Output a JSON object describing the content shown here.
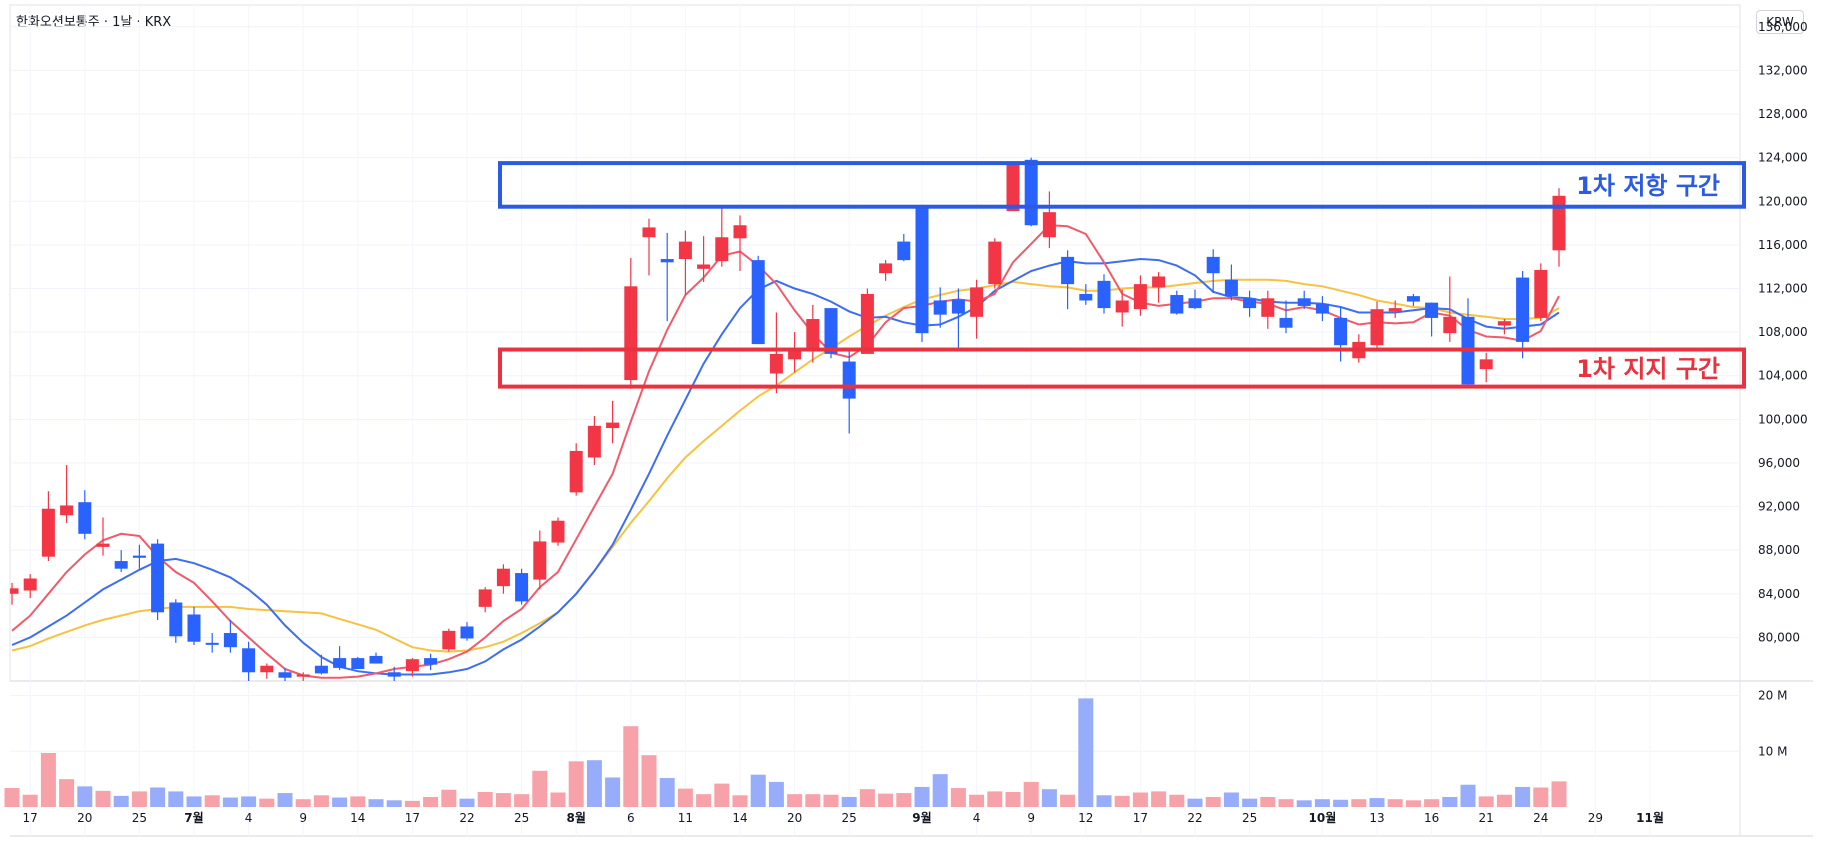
{
  "header": {
    "title": "한화오션보통주 · 1날 · KRX",
    "currency": "KRW"
  },
  "colors": {
    "up": "#f23645",
    "down": "#2962ff",
    "vol_up": "#f7a1a9",
    "vol_down": "#97adfb",
    "ma5": "#ef5b6a",
    "ma10": "#3d6ef0",
    "ma20": "#f5c242"
  },
  "chart_data": {
    "type": "candlestick",
    "ylim": [
      76000,
      138000
    ],
    "y_ticks": [
      80000,
      84000,
      88000,
      92000,
      96000,
      100000,
      104000,
      108000,
      112000,
      116000,
      120000,
      124000,
      128000,
      132000,
      136000
    ],
    "y_tick_labels": [
      "80,000",
      "84,000",
      "88,000",
      "92,000",
      "96,000",
      "100,000",
      "104,000",
      "108,000",
      "112,000",
      "116,000",
      "120,000",
      "124,000",
      "128,000",
      "132,000",
      "136,000"
    ],
    "volume_ticks": [
      {
        "value": 10,
        "label": "10 M"
      },
      {
        "value": 20,
        "label": "20 M"
      }
    ],
    "volume_max": 21,
    "x_tick_labels": [
      {
        "i": 1,
        "label": "17"
      },
      {
        "i": 4,
        "label": "20"
      },
      {
        "i": 7,
        "label": "25"
      },
      {
        "i": 10,
        "label": "7월",
        "bold": true
      },
      {
        "i": 13,
        "label": "4"
      },
      {
        "i": 16,
        "label": "9"
      },
      {
        "i": 19,
        "label": "14"
      },
      {
        "i": 22,
        "label": "17"
      },
      {
        "i": 25,
        "label": "22"
      },
      {
        "i": 28,
        "label": "25"
      },
      {
        "i": 31,
        "label": "8월",
        "bold": true
      },
      {
        "i": 34,
        "label": "6"
      },
      {
        "i": 37,
        "label": "11"
      },
      {
        "i": 40,
        "label": "14"
      },
      {
        "i": 43,
        "label": "20"
      },
      {
        "i": 46,
        "label": "25"
      },
      {
        "i": 50,
        "label": "9월",
        "bold": true
      },
      {
        "i": 53,
        "label": "4"
      },
      {
        "i": 56,
        "label": "9"
      },
      {
        "i": 59,
        "label": "12"
      },
      {
        "i": 62,
        "label": "17"
      },
      {
        "i": 65,
        "label": "22"
      },
      {
        "i": 68,
        "label": "25"
      },
      {
        "i": 72,
        "label": "10월",
        "bold": true
      },
      {
        "i": 75,
        "label": "13"
      },
      {
        "i": 78,
        "label": "16"
      },
      {
        "i": 81,
        "label": "21"
      },
      {
        "i": 84,
        "label": "24"
      },
      {
        "i": 87,
        "label": "29"
      },
      {
        "i": 90,
        "label": "11월",
        "bold": true
      }
    ],
    "ohlc": [
      [
        84000,
        85000,
        83000,
        84500
      ],
      [
        84300,
        85800,
        83600,
        85400
      ],
      [
        87400,
        93400,
        87000,
        91800
      ],
      [
        91200,
        95800,
        90500,
        92100
      ],
      [
        92400,
        93500,
        89000,
        89500
      ],
      [
        88300,
        91000,
        87500,
        88600
      ],
      [
        87000,
        88000,
        86000,
        86300
      ],
      [
        87500,
        88500,
        86300,
        87300
      ],
      [
        88600,
        89000,
        81600,
        82300
      ],
      [
        83200,
        83500,
        79500,
        80100
      ],
      [
        82100,
        82800,
        79300,
        79600
      ],
      [
        79500,
        80400,
        78600,
        79400
      ],
      [
        80400,
        81600,
        78600,
        79100
      ],
      [
        79000,
        79600,
        76000,
        76800
      ],
      [
        76800,
        77600,
        76200,
        77400
      ],
      [
        76800,
        77200,
        76000,
        76300
      ],
      [
        76400,
        76800,
        75600,
        76600
      ],
      [
        77400,
        78400,
        76600,
        76700
      ],
      [
        78100,
        79200,
        77000,
        77200
      ],
      [
        78100,
        78200,
        77100,
        77100
      ],
      [
        78300,
        78600,
        77600,
        77600
      ],
      [
        76800,
        77300,
        76000,
        76400
      ],
      [
        76900,
        78100,
        76400,
        78000
      ],
      [
        78100,
        78500,
        77000,
        77500
      ],
      [
        78900,
        80800,
        78700,
        80600
      ],
      [
        81000,
        81400,
        79700,
        79900
      ],
      [
        82800,
        84600,
        82300,
        84400
      ],
      [
        84700,
        86700,
        84000,
        86300
      ],
      [
        85900,
        86300,
        83000,
        83300
      ],
      [
        85300,
        89800,
        84400,
        88800
      ],
      [
        88700,
        91000,
        88400,
        90700
      ],
      [
        93300,
        97800,
        93000,
        97100
      ],
      [
        96500,
        100300,
        95800,
        99400
      ],
      [
        99200,
        101700,
        97800,
        99700
      ],
      [
        103600,
        114800,
        102800,
        112200
      ],
      [
        116700,
        118400,
        113200,
        117600
      ],
      [
        114700,
        117100,
        109000,
        114400
      ],
      [
        114700,
        117300,
        111400,
        116300
      ],
      [
        113800,
        116800,
        112600,
        114200
      ],
      [
        114500,
        119400,
        114000,
        116700
      ],
      [
        116600,
        118700,
        113600,
        117800
      ],
      [
        114600,
        115000,
        106900,
        106900
      ],
      [
        104200,
        109800,
        102400,
        106000
      ],
      [
        105500,
        108000,
        104300,
        106300
      ],
      [
        106500,
        110500,
        105200,
        109200
      ],
      [
        110200,
        110200,
        105600,
        106000
      ],
      [
        105300,
        106300,
        98700,
        101900
      ],
      [
        106000,
        112000,
        106000,
        111500
      ],
      [
        113400,
        114600,
        112700,
        114300
      ],
      [
        116300,
        117000,
        114500,
        114600
      ],
      [
        119400,
        119600,
        107100,
        107900
      ],
      [
        110900,
        112100,
        108400,
        109600
      ],
      [
        111000,
        112000,
        106400,
        109700
      ],
      [
        109400,
        112800,
        107400,
        112100
      ],
      [
        112400,
        116600,
        112000,
        116300
      ],
      [
        119100,
        123600,
        119100,
        123500
      ],
      [
        123800,
        124000,
        117700,
        117800
      ],
      [
        116700,
        120900,
        115700,
        119000
      ],
      [
        114900,
        115500,
        110100,
        112400
      ],
      [
        111500,
        112400,
        110500,
        110900
      ],
      [
        112700,
        113300,
        109700,
        110200
      ],
      [
        109800,
        111900,
        108500,
        110900
      ],
      [
        110100,
        113200,
        109500,
        112400
      ],
      [
        112100,
        113500,
        110700,
        113100
      ],
      [
        111400,
        111800,
        109600,
        109700
      ],
      [
        111100,
        111900,
        110100,
        110200
      ],
      [
        114900,
        115600,
        111600,
        113400
      ],
      [
        112800,
        114200,
        110900,
        111300
      ],
      [
        111100,
        111800,
        109400,
        110200
      ],
      [
        109400,
        111800,
        108300,
        111100
      ],
      [
        109300,
        110900,
        107900,
        108400
      ],
      [
        111100,
        111800,
        110100,
        110400
      ],
      [
        110600,
        111300,
        109000,
        109700
      ],
      [
        109300,
        110300,
        105300,
        106800
      ],
      [
        105600,
        107800,
        105200,
        107100
      ],
      [
        106800,
        110800,
        106400,
        110100
      ],
      [
        109900,
        110900,
        109300,
        110200
      ],
      [
        111300,
        111500,
        110400,
        110800
      ],
      [
        110700,
        110700,
        107600,
        109300
      ],
      [
        107900,
        113100,
        107100,
        109400
      ],
      [
        109400,
        111100,
        103100,
        103200
      ],
      [
        104600,
        106100,
        103400,
        105500
      ],
      [
        108600,
        109200,
        107800,
        109000
      ],
      [
        113000,
        113600,
        105600,
        107100
      ],
      [
        109300,
        114300,
        109000,
        113700
      ],
      [
        115500,
        121200,
        114000,
        120500
      ]
    ],
    "volumes": [
      [
        3.4,
        1
      ],
      [
        2.2,
        1
      ],
      [
        9.7,
        1
      ],
      [
        5.0,
        1
      ],
      [
        3.7,
        0
      ],
      [
        2.9,
        1
      ],
      [
        2.0,
        0
      ],
      [
        2.8,
        1
      ],
      [
        3.5,
        0
      ],
      [
        2.8,
        0
      ],
      [
        1.9,
        0
      ],
      [
        2.1,
        1
      ],
      [
        1.7,
        0
      ],
      [
        1.9,
        0
      ],
      [
        1.5,
        1
      ],
      [
        2.5,
        0
      ],
      [
        1.4,
        1
      ],
      [
        2.1,
        1
      ],
      [
        1.7,
        0
      ],
      [
        1.9,
        1
      ],
      [
        1.4,
        0
      ],
      [
        1.2,
        0
      ],
      [
        1.1,
        1
      ],
      [
        1.8,
        1
      ],
      [
        3.1,
        1
      ],
      [
        1.5,
        0
      ],
      [
        2.7,
        1
      ],
      [
        2.5,
        1
      ],
      [
        2.3,
        1
      ],
      [
        6.5,
        1
      ],
      [
        2.6,
        1
      ],
      [
        8.2,
        1
      ],
      [
        8.4,
        0
      ],
      [
        5.3,
        0
      ],
      [
        14.5,
        1
      ],
      [
        9.3,
        1
      ],
      [
        5.2,
        0
      ],
      [
        3.3,
        1
      ],
      [
        2.3,
        1
      ],
      [
        4.2,
        1
      ],
      [
        2.1,
        1
      ],
      [
        5.8,
        0
      ],
      [
        4.5,
        0
      ],
      [
        2.3,
        1
      ],
      [
        2.3,
        1
      ],
      [
        2.2,
        1
      ],
      [
        1.8,
        0
      ],
      [
        3.2,
        1
      ],
      [
        2.4,
        1
      ],
      [
        2.5,
        1
      ],
      [
        3.6,
        0
      ],
      [
        5.9,
        0
      ],
      [
        3.4,
        1
      ],
      [
        2.2,
        1
      ],
      [
        2.8,
        1
      ],
      [
        2.7,
        1
      ],
      [
        4.5,
        1
      ],
      [
        3.2,
        0
      ],
      [
        2.2,
        1
      ],
      [
        19.5,
        0
      ],
      [
        2.1,
        0
      ],
      [
        2.0,
        1
      ],
      [
        2.6,
        1
      ],
      [
        2.8,
        1
      ],
      [
        2.2,
        1
      ],
      [
        1.5,
        0
      ],
      [
        1.8,
        1
      ],
      [
        2.6,
        0
      ],
      [
        1.5,
        0
      ],
      [
        1.8,
        1
      ],
      [
        1.4,
        1
      ],
      [
        1.2,
        0
      ],
      [
        1.4,
        0
      ],
      [
        1.3,
        0
      ],
      [
        1.4,
        1
      ],
      [
        1.6,
        0
      ],
      [
        1.4,
        1
      ],
      [
        1.2,
        1
      ],
      [
        1.4,
        1
      ],
      [
        1.8,
        0
      ],
      [
        4.0,
        0
      ],
      [
        1.9,
        1
      ],
      [
        2.2,
        1
      ],
      [
        3.6,
        0
      ],
      [
        3.5,
        1
      ],
      [
        4.6,
        1
      ]
    ],
    "ma5": [
      80600,
      82000,
      84000,
      86000,
      87600,
      88900,
      89500,
      89300,
      87400,
      86000,
      85000,
      83300,
      81500,
      80000,
      78500,
      77100,
      76500,
      76300,
      76300,
      76400,
      76700,
      77100,
      77300,
      77500,
      78000,
      78700,
      80000,
      81500,
      82600,
      84600,
      86000,
      89000,
      92000,
      95000,
      99800,
      104400,
      108200,
      111400,
      113000,
      115000,
      115400,
      114100,
      112400,
      110000,
      107900,
      106100,
      105700,
      106800,
      108900,
      110200,
      110400,
      110800,
      111000,
      110800,
      111500,
      114400,
      116100,
      117800,
      117700,
      117000,
      114400,
      111500,
      110700,
      110400,
      110600,
      110800,
      111100,
      111100,
      110800,
      110600,
      110000,
      110300,
      110000,
      109300,
      108700,
      108900,
      108800,
      108900,
      109800,
      109500,
      108200,
      107600,
      107500,
      107200,
      108100,
      111300
    ],
    "ma10": [
      79300,
      80000,
      81000,
      82000,
      83200,
      84400,
      85300,
      86200,
      87000,
      87200,
      86800,
      86200,
      85500,
      84400,
      83000,
      81100,
      79500,
      78200,
      77300,
      76900,
      76700,
      76600,
      76600,
      76600,
      76800,
      77100,
      77800,
      78900,
      79800,
      81000,
      82300,
      84000,
      86100,
      88500,
      91700,
      95000,
      98500,
      101800,
      105100,
      107800,
      110200,
      111900,
      112700,
      112000,
      111500,
      110800,
      109900,
      109300,
      109400,
      108900,
      108600,
      108700,
      109400,
      110300,
      111800,
      112700,
      113600,
      114100,
      114500,
      114300,
      114300,
      114500,
      114700,
      114600,
      114100,
      113200,
      111700,
      111200,
      111100,
      110800,
      110700,
      110700,
      110600,
      110300,
      109800,
      109800,
      109800,
      110000,
      110200,
      110100,
      109200,
      108500,
      108300,
      108500,
      108700,
      109800
    ],
    "ma20": [
      78800,
      79200,
      79900,
      80500,
      81100,
      81600,
      82000,
      82400,
      82600,
      82800,
      82800,
      82800,
      82800,
      82600,
      82500,
      82400,
      82300,
      82200,
      81700,
      81200,
      80700,
      79900,
      79100,
      78800,
      78700,
      78800,
      79100,
      79600,
      80400,
      81300,
      82300,
      84000,
      86100,
      88300,
      90500,
      92500,
      94600,
      96500,
      98000,
      99400,
      100800,
      102100,
      103100,
      104300,
      105500,
      106500,
      107600,
      108600,
      109500,
      110300,
      111000,
      111400,
      111800,
      112000,
      112300,
      112600,
      112400,
      112200,
      112100,
      111800,
      111800,
      112000,
      112100,
      112100,
      112300,
      112500,
      112700,
      112800,
      112800,
      112800,
      112700,
      112400,
      112200,
      111800,
      111400,
      110900,
      110600,
      110300,
      110200,
      109800,
      109600,
      109400,
      109200,
      109200,
      109300,
      110200
    ]
  },
  "zones": {
    "resistance": {
      "label": "1차 저항 구간",
      "top": 123500,
      "bottom": 119500
    },
    "support": {
      "label": "1차 지지 구간",
      "top": 106400,
      "bottom": 103000
    }
  }
}
